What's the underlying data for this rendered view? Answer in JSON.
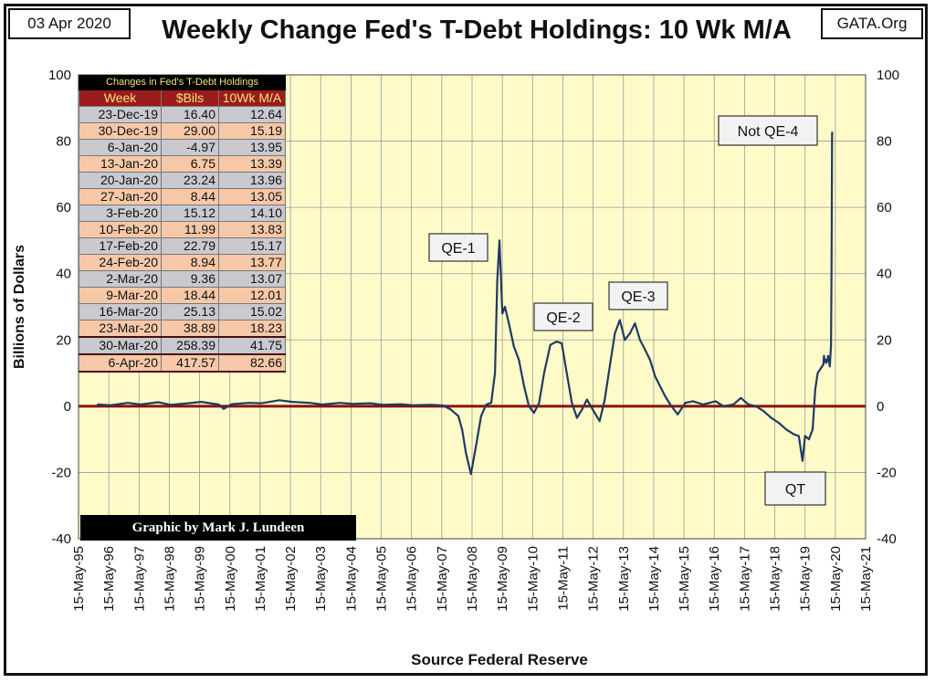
{
  "header": {
    "date": "03 Apr 2020",
    "site": "GATA.Org",
    "title": "Weekly Change Fed's T-Debt Holdings: 10 Wk M/A"
  },
  "colors": {
    "plot_bg": "#fffbc8",
    "grid": "#9a9a9a",
    "series": "#1f3a63",
    "zero_line": "#8b1010",
    "table_header": "#9b1c1c"
  },
  "chart_data": {
    "type": "line",
    "title": "Weekly Change Fed's T-Debt Holdings: 10 Wk M/A",
    "xlabel": "Source Federal Reserve",
    "ylabel": "Billions of Dollars",
    "ylim": [
      -40,
      100
    ],
    "yticks": [
      -40,
      -20,
      0,
      20,
      40,
      60,
      80,
      100
    ],
    "xlim": [
      "1995-05-15",
      "2021-05-15"
    ],
    "xtick_labels": [
      "15-May-95",
      "15-May-96",
      "15-May-97",
      "15-May-98",
      "15-May-99",
      "15-May-00",
      "15-May-01",
      "15-May-02",
      "15-May-03",
      "15-May-04",
      "15-May-05",
      "15-May-06",
      "15-May-07",
      "15-May-08",
      "15-May-09",
      "15-May-10",
      "15-May-11",
      "15-May-12",
      "15-May-13",
      "15-May-14",
      "15-May-15",
      "15-May-16",
      "15-May-17",
      "15-May-18",
      "15-May-19",
      "15-May-20",
      "15-May-21"
    ],
    "grid": true,
    "series": [
      {
        "values": [
          [
            "1996-01-01",
            0.5
          ],
          [
            "1996-06-01",
            0.3
          ],
          [
            "1997-01-01",
            1.0
          ],
          [
            "1997-06-01",
            0.5
          ],
          [
            "1998-01-01",
            1.2
          ],
          [
            "1998-06-01",
            0.4
          ],
          [
            "1999-01-01",
            0.9
          ],
          [
            "1999-06-01",
            1.3
          ],
          [
            "2000-01-01",
            0.5
          ],
          [
            "2000-03-01",
            -0.8
          ],
          [
            "2000-06-01",
            0.6
          ],
          [
            "2001-01-01",
            1.0
          ],
          [
            "2001-06-01",
            0.9
          ],
          [
            "2002-01-01",
            1.8
          ],
          [
            "2002-06-01",
            1.3
          ],
          [
            "2003-01-01",
            1.0
          ],
          [
            "2003-06-01",
            0.5
          ],
          [
            "2004-01-01",
            1.0
          ],
          [
            "2004-06-01",
            0.7
          ],
          [
            "2005-01-01",
            0.9
          ],
          [
            "2005-06-01",
            0.4
          ],
          [
            "2006-01-01",
            0.6
          ],
          [
            "2006-06-01",
            0.3
          ],
          [
            "2007-01-01",
            0.4
          ],
          [
            "2007-06-01",
            0.2
          ],
          [
            "2007-09-01",
            -1.0
          ],
          [
            "2007-12-01",
            -3.0
          ],
          [
            "2008-01-15",
            -7.0
          ],
          [
            "2008-03-01",
            -14.0
          ],
          [
            "2008-05-01",
            -20.5
          ],
          [
            "2008-07-01",
            -12.0
          ],
          [
            "2008-09-01",
            -3.0
          ],
          [
            "2008-11-01",
            0.5
          ],
          [
            "2009-01-01",
            1.0
          ],
          [
            "2009-02-15",
            10.0
          ],
          [
            "2009-03-15",
            38.0
          ],
          [
            "2009-04-10",
            50.0
          ],
          [
            "2009-05-15",
            28.0
          ],
          [
            "2009-06-15",
            30.0
          ],
          [
            "2009-08-01",
            25.0
          ],
          [
            "2009-10-01",
            18.0
          ],
          [
            "2009-12-01",
            14.0
          ],
          [
            "2010-02-01",
            6.0
          ],
          [
            "2010-04-01",
            0.0
          ],
          [
            "2010-06-01",
            -2.0
          ],
          [
            "2010-08-01",
            1.0
          ],
          [
            "2010-10-01",
            10.0
          ],
          [
            "2010-12-15",
            18.5
          ],
          [
            "2011-03-01",
            19.5
          ],
          [
            "2011-05-01",
            19.0
          ],
          [
            "2011-07-01",
            10.0
          ],
          [
            "2011-09-01",
            1.0
          ],
          [
            "2011-11-01",
            -3.5
          ],
          [
            "2012-01-01",
            -1.0
          ],
          [
            "2012-03-01",
            2.0
          ],
          [
            "2012-06-01",
            -2.0
          ],
          [
            "2012-08-01",
            -4.5
          ],
          [
            "2012-10-01",
            2.0
          ],
          [
            "2012-12-01",
            12.0
          ],
          [
            "2013-02-01",
            22.0
          ],
          [
            "2013-04-01",
            26.0
          ],
          [
            "2013-06-01",
            20.0
          ],
          [
            "2013-08-01",
            22.0
          ],
          [
            "2013-10-01",
            25.0
          ],
          [
            "2013-12-01",
            20.0
          ],
          [
            "2014-02-01",
            17.0
          ],
          [
            "2014-04-01",
            14.0
          ],
          [
            "2014-06-01",
            9.0
          ],
          [
            "2014-08-01",
            6.0
          ],
          [
            "2014-10-01",
            3.0
          ],
          [
            "2014-12-01",
            0.5
          ],
          [
            "2015-03-01",
            -2.5
          ],
          [
            "2015-06-01",
            1.0
          ],
          [
            "2015-09-01",
            1.5
          ],
          [
            "2016-01-01",
            0.5
          ],
          [
            "2016-06-01",
            1.5
          ],
          [
            "2016-09-01",
            0.0
          ],
          [
            "2017-01-01",
            0.5
          ],
          [
            "2017-04-01",
            2.5
          ],
          [
            "2017-07-01",
            0.5
          ],
          [
            "2017-10-01",
            0.0
          ],
          [
            "2018-01-01",
            -1.5
          ],
          [
            "2018-04-01",
            -3.5
          ],
          [
            "2018-07-01",
            -5.0
          ],
          [
            "2018-10-01",
            -7.0
          ],
          [
            "2019-01-01",
            -8.5
          ],
          [
            "2019-03-01",
            -9.0
          ],
          [
            "2019-04-15",
            -16.5
          ],
          [
            "2019-05-15",
            -9.0
          ],
          [
            "2019-07-01",
            -10.0
          ],
          [
            "2019-08-15",
            -7.0
          ],
          [
            "2019-09-15",
            5.0
          ],
          [
            "2019-10-15",
            10.0
          ],
          [
            "2019-12-23",
            12.64
          ],
          [
            "2019-12-30",
            15.19
          ],
          [
            "2020-01-06",
            13.95
          ],
          [
            "2020-01-13",
            13.39
          ],
          [
            "2020-01-20",
            13.96
          ],
          [
            "2020-01-27",
            13.05
          ],
          [
            "2020-02-03",
            14.1
          ],
          [
            "2020-02-10",
            13.83
          ],
          [
            "2020-02-17",
            15.17
          ],
          [
            "2020-02-24",
            13.77
          ],
          [
            "2020-03-02",
            13.07
          ],
          [
            "2020-03-09",
            12.01
          ],
          [
            "2020-03-16",
            15.02
          ],
          [
            "2020-03-23",
            18.23
          ],
          [
            "2020-03-30",
            41.75
          ],
          [
            "2020-04-06",
            82.66
          ]
        ]
      }
    ],
    "annotations": [
      {
        "text": "QE-1"
      },
      {
        "text": "QE-2"
      },
      {
        "text": "QE-3"
      },
      {
        "text": "Not QE-4"
      },
      {
        "text": "QT"
      }
    ]
  },
  "table": {
    "caption": "Changes in Fed's T-Debt Holdings",
    "headers": [
      "Week",
      "$Bils",
      "10Wk M/A"
    ],
    "rows": [
      {
        "week": "23-Dec-19",
        "bils": "16.40",
        "ma": "12.64"
      },
      {
        "week": "30-Dec-19",
        "bils": "29.00",
        "ma": "15.19"
      },
      {
        "week": "6-Jan-20",
        "bils": "-4.97",
        "ma": "13.95"
      },
      {
        "week": "13-Jan-20",
        "bils": "6.75",
        "ma": "13.39"
      },
      {
        "week": "20-Jan-20",
        "bils": "23.24",
        "ma": "13.96"
      },
      {
        "week": "27-Jan-20",
        "bils": "8.44",
        "ma": "13.05"
      },
      {
        "week": "3-Feb-20",
        "bils": "15.12",
        "ma": "14.10"
      },
      {
        "week": "10-Feb-20",
        "bils": "11.99",
        "ma": "13.83"
      },
      {
        "week": "17-Feb-20",
        "bils": "22.79",
        "ma": "15.17"
      },
      {
        "week": "24-Feb-20",
        "bils": "8.94",
        "ma": "13.77"
      },
      {
        "week": "2-Mar-20",
        "bils": "9.36",
        "ma": "13.07"
      },
      {
        "week": "9-Mar-20",
        "bils": "18.44",
        "ma": "12.01"
      },
      {
        "week": "16-Mar-20",
        "bils": "25.13",
        "ma": "15.02"
      },
      {
        "week": "23-Mar-20",
        "bils": "38.89",
        "ma": "18.23"
      },
      {
        "week": "30-Mar-20",
        "bils": "258.39",
        "ma": "41.75"
      },
      {
        "week": "6-Apr-20",
        "bils": "417.57",
        "ma": "82.66"
      }
    ]
  },
  "credit": "Graphic by Mark J. Lundeen"
}
